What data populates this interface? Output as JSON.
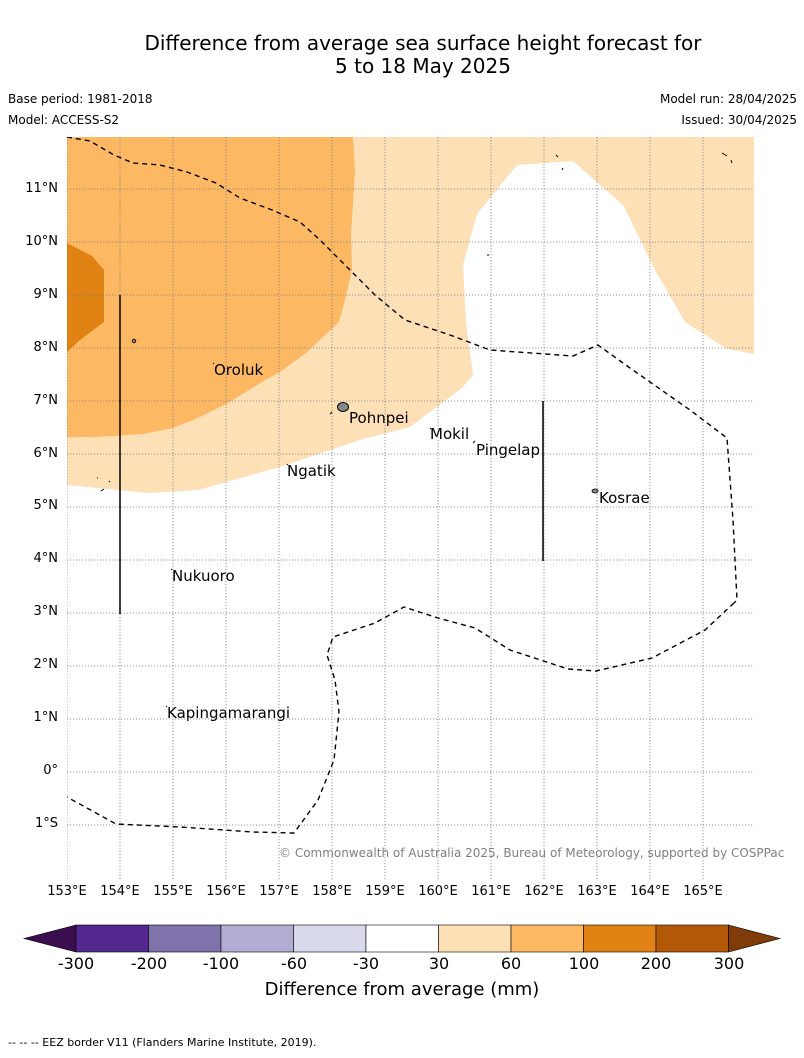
{
  "header": {
    "title_line1": "Difference from average sea surface height forecast for",
    "title_line2": "5 to 18 May 2025",
    "base_period": "Base period: 1981-2018",
    "model": "Model: ACCESS-S2",
    "model_run": "Model run: 28/04/2025",
    "issued": "Issued: 30/04/2025"
  },
  "map": {
    "lat_labels": [
      "11°N",
      "10°N",
      "9°N",
      "8°N",
      "7°N",
      "6°N",
      "5°N",
      "4°N",
      "3°N",
      "2°N",
      "1°N",
      "0°",
      "1°S"
    ],
    "lon_labels": [
      "153°E",
      "154°E",
      "155°E",
      "156°E",
      "157°E",
      "158°E",
      "159°E",
      "160°E",
      "161°E",
      "162°E",
      "163°E",
      "164°E",
      "165°E"
    ],
    "places": [
      {
        "name": "Oroluk"
      },
      {
        "name": "Pohnpei"
      },
      {
        "name": "Mokil"
      },
      {
        "name": "Pingelap"
      },
      {
        "name": "Ngatik"
      },
      {
        "name": "Kosrae"
      },
      {
        "name": "Nukuoro"
      },
      {
        "name": "Kapingamarangi"
      }
    ],
    "copyright": "© Commonwealth of Australia 2025, Bureau of Meteorology, supported by COSPPac"
  },
  "colorbar": {
    "ticks": [
      "-300",
      "-200",
      "-100",
      "-60",
      "-30",
      "30",
      "60",
      "100",
      "200",
      "300"
    ],
    "colors": [
      "#3b0f4f",
      "#54278f",
      "#8073ac",
      "#b2abd2",
      "#d8daeb",
      "#ffffff",
      "#fee0b6",
      "#fdb863",
      "#e08214",
      "#b35806",
      "#7f3b08"
    ],
    "title": "Difference from average (mm)"
  },
  "legend": {
    "footnote": "--  --  -- EEZ border V11 (Flanders Marine Institute, 2019)."
  }
}
